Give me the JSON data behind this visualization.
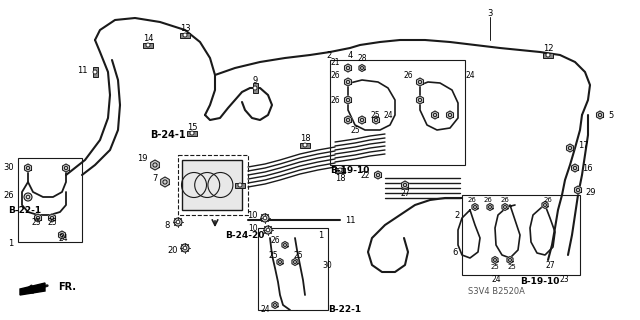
{
  "bg_color": "#ffffff",
  "line_color": "#1a1a1a",
  "fig_width": 6.4,
  "fig_height": 3.2,
  "dpi": 100,
  "labels": {
    "B191_left": "B-19-10",
    "B221_left": "B-22-1",
    "B221_center": "B-22-1",
    "B241": "B-24-1",
    "B2420": "B-24-20",
    "B1910_right": "B-19-10",
    "s3v4": "S3V4 B2520A",
    "fr": "FR."
  }
}
